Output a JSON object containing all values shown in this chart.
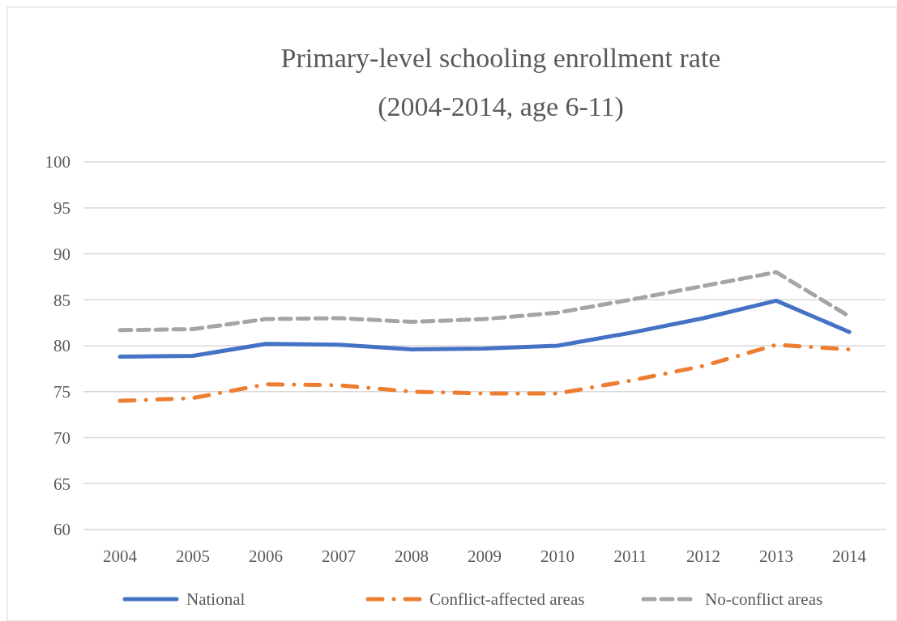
{
  "chart_data": {
    "type": "line",
    "title": "Primary-level schooling enrollment rate\n(2004-2014, age 6-11)",
    "categories": [
      "2004",
      "2005",
      "2006",
      "2007",
      "2008",
      "2009",
      "2010",
      "2011",
      "2012",
      "2013",
      "2014"
    ],
    "series": [
      {
        "name": "National",
        "color": "#4472c4",
        "line_style": "solid",
        "values": [
          78.8,
          78.9,
          80.2,
          80.1,
          79.6,
          79.7,
          80.0,
          81.4,
          83.0,
          84.9,
          81.5
        ]
      },
      {
        "name": "Conflict-affected areas",
        "color": "#ed7d31",
        "line_style": "dashdot",
        "values": [
          74.0,
          74.3,
          75.8,
          75.7,
          75.0,
          74.8,
          74.8,
          76.2,
          77.8,
          80.1,
          79.6
        ]
      },
      {
        "name": "No-conflict areas",
        "color": "#a5a5a5",
        "line_style": "dashed",
        "values": [
          81.7,
          81.8,
          82.9,
          83.0,
          82.6,
          82.9,
          83.6,
          85.0,
          86.5,
          88.0,
          83.2
        ]
      }
    ],
    "ylim": [
      60,
      100
    ],
    "yticks": [
      60,
      65,
      70,
      75,
      80,
      85,
      90,
      95,
      100
    ],
    "grid": "y",
    "legend": "bottom",
    "marker": "none"
  }
}
